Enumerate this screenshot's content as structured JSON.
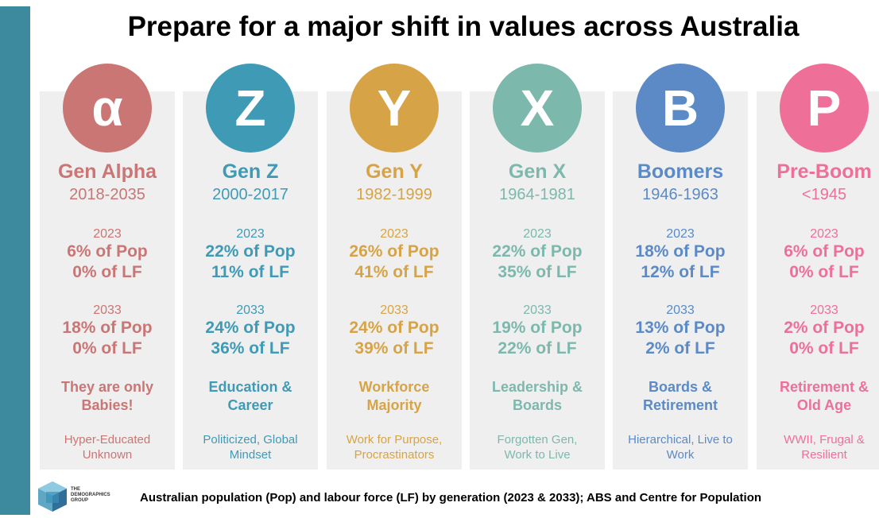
{
  "title": "Prepare for a major shift in values across Australia",
  "generations": [
    {
      "letter": "α",
      "name": "Gen Alpha",
      "years": "2018-2035",
      "color": "#c97675",
      "year1": "2023",
      "pop1": "6% of Pop",
      "lf1": "0% of LF",
      "year2": "2033",
      "pop2": "18% of Pop",
      "lf2": "0% of LF",
      "role1": "They are only",
      "role2": "Babies!",
      "traits1": "Hyper-Educated",
      "traits2": "Unknown"
    },
    {
      "letter": "Z",
      "name": "Gen Z",
      "years": "2000-2017",
      "color": "#3f9ab5",
      "year1": "2023",
      "pop1": "22% of Pop",
      "lf1": "11% of LF",
      "year2": "2033",
      "pop2": "24% of Pop",
      "lf2": "36% of LF",
      "role1": "Education &",
      "role2": "Career",
      "traits1": "Politicized, Global",
      "traits2": "Mindset"
    },
    {
      "letter": "Y",
      "name": "Gen Y",
      "years": "1982-1999",
      "color": "#d6a447",
      "year1": "2023",
      "pop1": "26% of Pop",
      "lf1": "41% of LF",
      "year2": "2033",
      "pop2": "24% of Pop",
      "lf2": "39% of LF",
      "role1": "Workforce",
      "role2": "Majority",
      "traits1": "Work for Purpose,",
      "traits2": "Procrastinators"
    },
    {
      "letter": "X",
      "name": "Gen X",
      "years": "1964-1981",
      "color": "#7db8ad",
      "year1": "2023",
      "pop1": "22% of Pop",
      "lf1": "35% of LF",
      "year2": "2033",
      "pop2": "19% of Pop",
      "lf2": "22% of LF",
      "role1": "Leadership &",
      "role2": "Boards",
      "traits1": "Forgotten Gen,",
      "traits2": "Work to Live"
    },
    {
      "letter": "B",
      "name": "Boomers",
      "years": "1946-1963",
      "color": "#5b8ac6",
      "year1": "2023",
      "pop1": "18% of Pop",
      "lf1": "12% of LF",
      "year2": "2033",
      "pop2": "13% of Pop",
      "lf2": "2% of LF",
      "role1": "Boards &",
      "role2": "Retirement",
      "traits1": "Hierarchical, Live to",
      "traits2": "Work"
    },
    {
      "letter": "P",
      "name": "Pre-Boom",
      "years": "<1945",
      "color": "#ee6f98",
      "year1": "2023",
      "pop1": "6% of Pop",
      "lf1": "0% of LF",
      "year2": "2033",
      "pop2": "2% of Pop",
      "lf2": "0% of LF",
      "role1": "Retirement &",
      "role2": "Old Age",
      "traits1": "WWII, Frugal &",
      "traits2": "Resilient"
    }
  ],
  "logo": {
    "line1": "THE",
    "line2": "DEMOGRAPHICS",
    "line3": "GROUP"
  },
  "caption": "Australian population (Pop) and labour force (LF) by generation (2023 & 2033); ABS and Centre for Population",
  "colors": {
    "side_bar": "#3d8a9e",
    "panel": "#efefef"
  }
}
